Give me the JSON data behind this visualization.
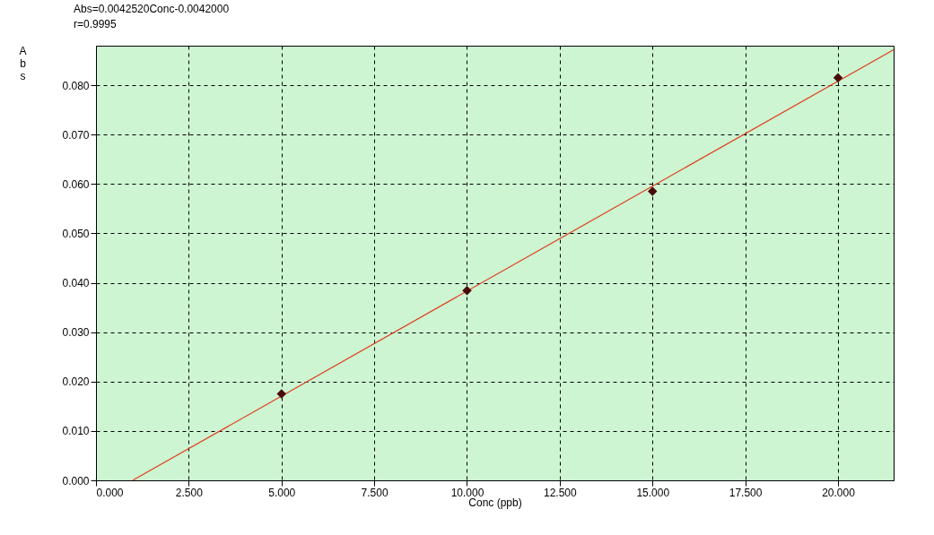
{
  "chart_data": {
    "type": "scatter",
    "xlabel": "Conc (ppb)",
    "ylabel": "Abs",
    "annotations": [
      "Abs=0.0042520Conc-0.0042000",
      "r=0.9995"
    ],
    "xlim": [
      0,
      21.5
    ],
    "ylim": [
      0,
      0.088
    ],
    "xticks": [
      {
        "value": 0,
        "label": "0.000"
      },
      {
        "value": 2.5,
        "label": "2.500"
      },
      {
        "value": 5,
        "label": "5.000"
      },
      {
        "value": 7.5,
        "label": "7.500"
      },
      {
        "value": 10,
        "label": "10.000"
      },
      {
        "value": 12.5,
        "label": "12.500"
      },
      {
        "value": 15,
        "label": "15.000"
      },
      {
        "value": 17.5,
        "label": "17.500"
      },
      {
        "value": 20,
        "label": "20.000"
      }
    ],
    "yticks": [
      {
        "value": 0,
        "label": "0.000"
      },
      {
        "value": 0.01,
        "label": "0.010"
      },
      {
        "value": 0.02,
        "label": "0.020"
      },
      {
        "value": 0.03,
        "label": "0.030"
      },
      {
        "value": 0.04,
        "label": "0.040"
      },
      {
        "value": 0.05,
        "label": "0.050"
      },
      {
        "value": 0.06,
        "label": "0.060"
      },
      {
        "value": 0.07,
        "label": "0.070"
      },
      {
        "value": 0.08,
        "label": "0.080"
      }
    ],
    "grid": true,
    "series": [
      {
        "color": "#4a0a0a",
        "marker": "diamond",
        "x": [
          5,
          10,
          15,
          20
        ],
        "values": [
          0.0175,
          0.0384,
          0.0585,
          0.0815
        ]
      },
      {
        "type": "line",
        "color": "#e03c1e",
        "marker": "none",
        "line_style": "solid",
        "x": [
          0.988,
          21.5
        ],
        "values": [
          0,
          0.0872
        ]
      }
    ]
  }
}
